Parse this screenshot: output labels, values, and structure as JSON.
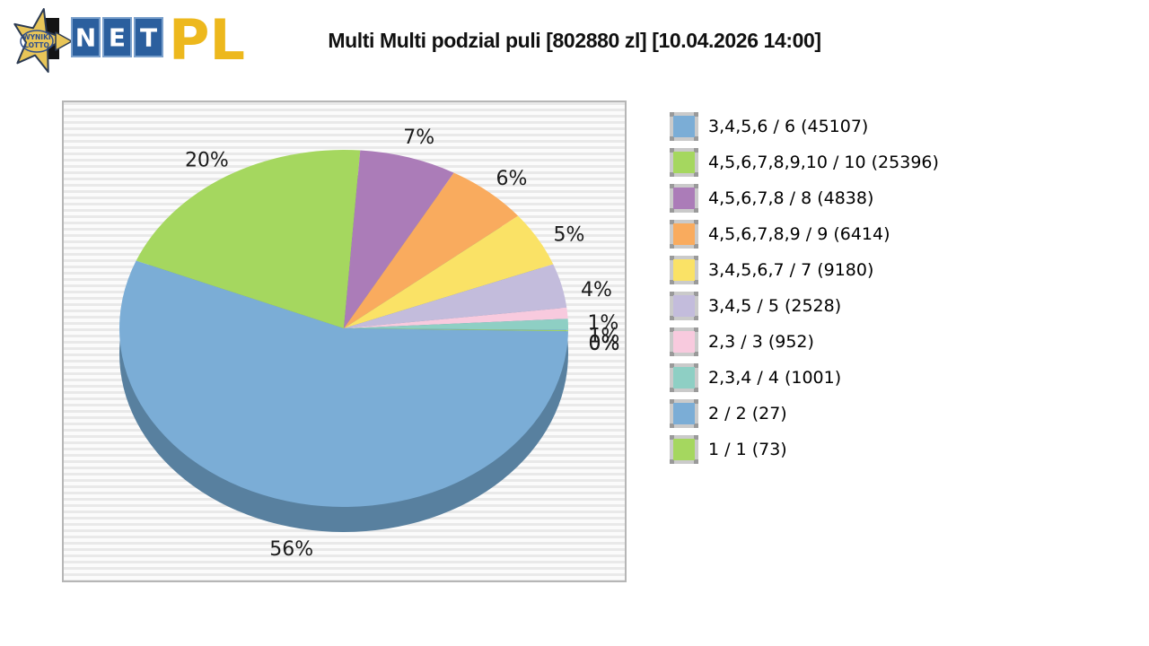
{
  "header": {
    "logo": {
      "wyniki": "WYNIKI",
      "lotto": "LOTTO",
      "net_letters": [
        "N",
        "E",
        "T"
      ],
      "pl": "PL"
    },
    "title": "Multi Multi podzial puli [802880 zl] [10.04.2026 14:00]"
  },
  "chart_data": {
    "type": "pie",
    "style": "3d",
    "title": "Multi Multi podzial puli [802880 zl] [10.04.2026 14:00]",
    "legend_position": "right",
    "depth_color": "#58809f",
    "slices": [
      {
        "label": "3,4,5,6 / 6",
        "count": 45107,
        "percent": 56,
        "percent_label": "56%",
        "legend_label": "3,4,5,6 / 6 (45107)",
        "color": "#7badd6",
        "draw_percent": 56
      },
      {
        "label": "4,5,6,7,8,9,10 / 10",
        "count": 25396,
        "percent": 20,
        "percent_label": "20%",
        "legend_label": "4,5,6,7,8,9,10 / 10 (25396)",
        "color": "#a5d75f",
        "draw_percent": 20
      },
      {
        "label": "4,5,6,7,8 / 8",
        "count": 4838,
        "percent": 7,
        "percent_label": "7%",
        "legend_label": "4,5,6,7,8 / 8 (4838)",
        "color": "#ab7cb8",
        "draw_percent": 7
      },
      {
        "label": "4,5,6,7,8,9 / 9",
        "count": 6414,
        "percent": 6,
        "percent_label": "6%",
        "legend_label": "4,5,6,7,8,9 / 9 (6414)",
        "color": "#f9ab5e",
        "draw_percent": 6
      },
      {
        "label": "3,4,5,6,7 / 7",
        "count": 9180,
        "percent": 5,
        "percent_label": "5%",
        "legend_label": "3,4,5,6,7 / 7 (9180)",
        "color": "#fae266",
        "draw_percent": 5
      },
      {
        "label": "3,4,5 / 5",
        "count": 2528,
        "percent": 4,
        "percent_label": "4%",
        "legend_label": "3,4,5 / 5 (2528)",
        "color": "#c3bcdc",
        "draw_percent": 4
      },
      {
        "label": "2,3 / 3",
        "count": 952,
        "percent": 1,
        "percent_label": "1%",
        "legend_label": "2,3 / 3 (952)",
        "color": "#f8cade",
        "draw_percent": 1
      },
      {
        "label": "2,3,4 / 4",
        "count": 1001,
        "percent": 1,
        "percent_label": "1%",
        "legend_label": "2,3,4 / 4 (1001)",
        "color": "#8ecfc4",
        "draw_percent": 1
      },
      {
        "label": "2 / 2",
        "count": 27,
        "percent": 0,
        "percent_label": "0%",
        "legend_label": "2 / 2 (27)",
        "color": "#7badd6",
        "draw_percent": 0.03
      },
      {
        "label": "1 / 1",
        "count": 73,
        "percent": 0,
        "percent_label": "0%",
        "legend_label": "1 / 1 (73)",
        "color": "#a5d75f",
        "draw_percent": 0.08
      }
    ]
  }
}
